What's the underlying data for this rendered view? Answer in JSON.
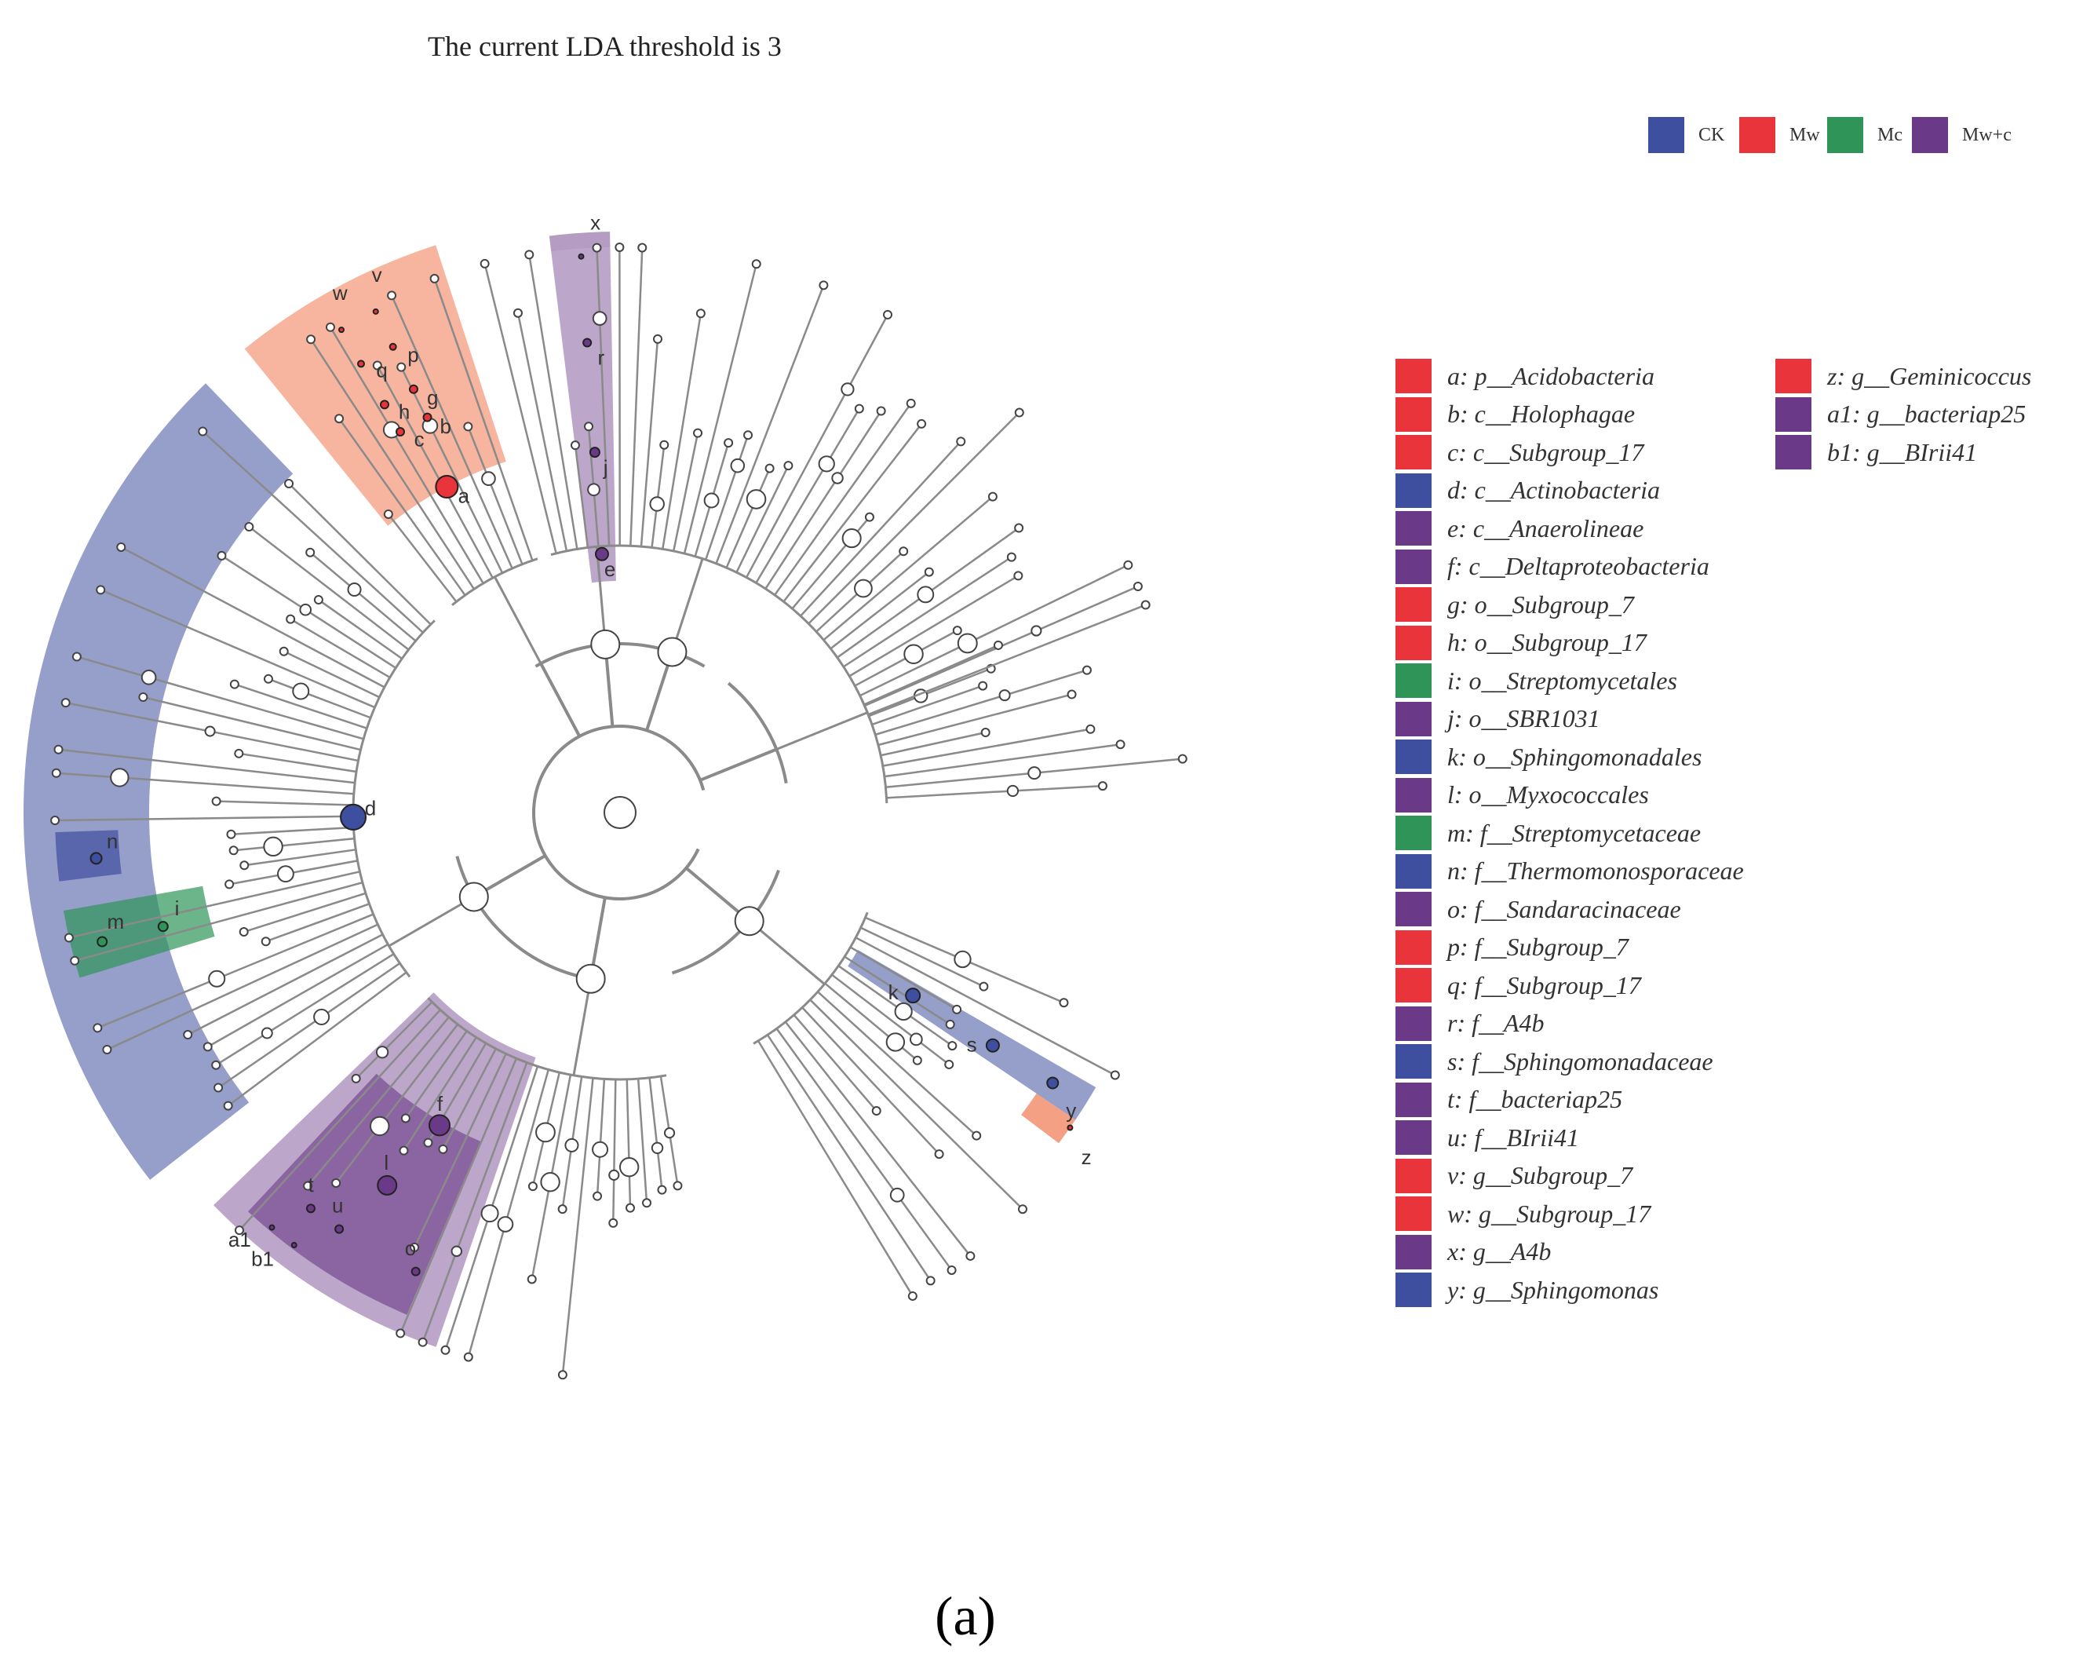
{
  "title": "The current LDA threshold is 3",
  "groups": [
    {
      "label": "CK",
      "color": "#3f4f9f"
    },
    {
      "label": "Mw",
      "color": "#e8343a"
    },
    {
      "label": "Mc",
      "color": "#2e9458"
    },
    {
      "label": "Mw+c",
      "color": "#6a3a88"
    }
  ],
  "legend": [
    {
      "key": "a",
      "taxon": "p__Acidobacteria",
      "group": "Mw"
    },
    {
      "key": "b",
      "taxon": "c__Holophagae",
      "group": "Mw"
    },
    {
      "key": "c",
      "taxon": "c__Subgroup_17",
      "group": "Mw"
    },
    {
      "key": "d",
      "taxon": "c__Actinobacteria",
      "group": "CK"
    },
    {
      "key": "e",
      "taxon": "c__Anaerolineae",
      "group": "Mw+c"
    },
    {
      "key": "f",
      "taxon": "c__Deltaproteobacteria",
      "group": "Mw+c"
    },
    {
      "key": "g",
      "taxon": "o__Subgroup_7",
      "group": "Mw"
    },
    {
      "key": "h",
      "taxon": "o__Subgroup_17",
      "group": "Mw"
    },
    {
      "key": "i",
      "taxon": "o__Streptomycetales",
      "group": "Mc"
    },
    {
      "key": "j",
      "taxon": "o__SBR1031",
      "group": "Mw+c"
    },
    {
      "key": "k",
      "taxon": "o__Sphingomonadales",
      "group": "CK"
    },
    {
      "key": "l",
      "taxon": "o__Myxococcales",
      "group": "Mw+c"
    },
    {
      "key": "m",
      "taxon": "f__Streptomycetaceae",
      "group": "Mc"
    },
    {
      "key": "n",
      "taxon": "f__Thermomonosporaceae",
      "group": "CK"
    },
    {
      "key": "o",
      "taxon": "f__Sandaracinaceae",
      "group": "Mw+c"
    },
    {
      "key": "p",
      "taxon": "f__Subgroup_7",
      "group": "Mw"
    },
    {
      "key": "q",
      "taxon": "f__Subgroup_17",
      "group": "Mw"
    },
    {
      "key": "r",
      "taxon": "f__A4b",
      "group": "Mw+c"
    },
    {
      "key": "s",
      "taxon": "f__Sphingomonadaceae",
      "group": "CK"
    },
    {
      "key": "t",
      "taxon": "f__bacteriap25",
      "group": "Mw+c"
    },
    {
      "key": "u",
      "taxon": "f__BIrii41",
      "group": "Mw+c"
    },
    {
      "key": "v",
      "taxon": "g__Subgroup_7",
      "group": "Mw"
    },
    {
      "key": "w",
      "taxon": "g__Subgroup_17",
      "group": "Mw"
    },
    {
      "key": "x",
      "taxon": "g__A4b",
      "group": "Mw+c"
    },
    {
      "key": "y",
      "taxon": "g__Sphingomonas",
      "group": "CK"
    },
    {
      "key": "z",
      "taxon": "g__Geminicoccus",
      "group": "Mw"
    },
    {
      "key": "a1",
      "taxon": "g__bacteriap25",
      "group": "Mw+c"
    },
    {
      "key": "b1",
      "taxon": "g__BIrii41",
      "group": "Mw+c"
    }
  ],
  "clade_labels": [
    "a",
    "b",
    "c",
    "d",
    "e",
    "f",
    "g",
    "h",
    "i",
    "j",
    "k",
    "l",
    "m",
    "n",
    "o",
    "p",
    "q",
    "r",
    "s",
    "t",
    "u",
    "v",
    "w",
    "x",
    "y",
    "z",
    "a1",
    "b1"
  ],
  "caption": "(a)"
}
